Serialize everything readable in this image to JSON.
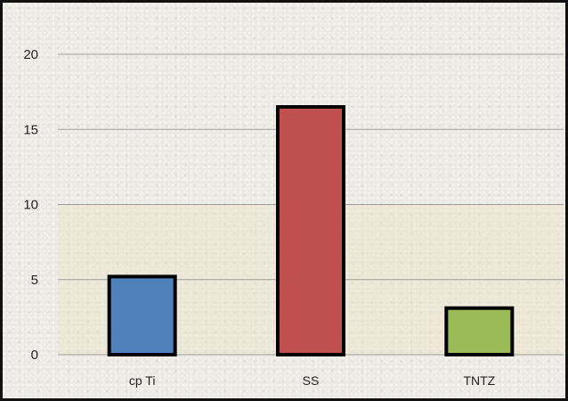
{
  "chart_data": {
    "type": "bar",
    "categories": [
      "cp Ti",
      "SS",
      "TNTZ"
    ],
    "values": [
      5.2,
      16.5,
      3.1
    ],
    "colors": [
      "#4f81bd",
      "#c0504d",
      "#9bbb59"
    ],
    "ylim": [
      0,
      20
    ],
    "yticks": [
      "0",
      "5",
      "10",
      "15",
      "20"
    ],
    "grid": true,
    "title": "",
    "xlabel": "",
    "ylabel": ""
  }
}
